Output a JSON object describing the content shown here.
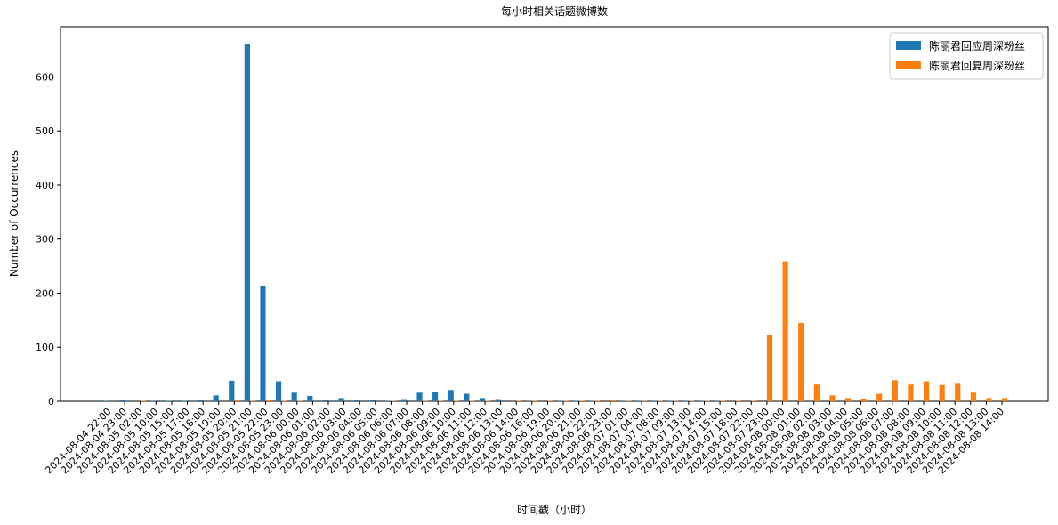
{
  "chart_data": {
    "type": "bar",
    "title": "每小时相关话题微博数",
    "x_label": "时间戳（小时）",
    "y_label": "Number of Occurrences",
    "categories": [
      "2024-08-04 22:00",
      "2024-08-04 23:00",
      "2024-08-05 02:00",
      "2024-08-05 10:00",
      "2024-08-05 15:00",
      "2024-08-05 17:00",
      "2024-08-05 18:00",
      "2024-08-05 19:00",
      "2024-08-05 20:00",
      "2024-08-05 21:00",
      "2024-08-05 22:00",
      "2024-08-05 23:00",
      "2024-08-06 00:00",
      "2024-08-06 01:00",
      "2024-08-06 02:00",
      "2024-08-06 03:00",
      "2024-08-06 04:00",
      "2024-08-06 05:00",
      "2024-08-06 06:00",
      "2024-08-06 07:00",
      "2024-08-06 08:00",
      "2024-08-06 09:00",
      "2024-08-06 10:00",
      "2024-08-06 11:00",
      "2024-08-06 12:00",
      "2024-08-06 13:00",
      "2024-08-06 14:00",
      "2024-08-06 16:00",
      "2024-08-06 19:00",
      "2024-08-06 20:00",
      "2024-08-06 21:00",
      "2024-08-06 22:00",
      "2024-08-06 23:00",
      "2024-08-07 01:00",
      "2024-08-07 04:00",
      "2024-08-07 08:00",
      "2024-08-07 09:00",
      "2024-08-07 13:00",
      "2024-08-07 14:00",
      "2024-08-07 15:00",
      "2024-08-07 18:00",
      "2024-08-07 22:00",
      "2024-08-07 23:00",
      "2024-08-08 00:00",
      "2024-08-08 01:00",
      "2024-08-08 02:00",
      "2024-08-08 03:00",
      "2024-08-08 04:00",
      "2024-08-08 05:00",
      "2024-08-08 06:00",
      "2024-08-08 07:00",
      "2024-08-08 08:00",
      "2024-08-08 09:00",
      "2024-08-08 10:00",
      "2024-08-08 11:00",
      "2024-08-08 12:00",
      "2024-08-08 13:00",
      "2024-08-08 14:00"
    ],
    "series": [
      {
        "name": "陈丽君回应周深粉丝",
        "color": "#1f77b4",
        "values": [
          1,
          3,
          0,
          1,
          1,
          1,
          2,
          11,
          38,
          660,
          214,
          37,
          16,
          10,
          3,
          6,
          2,
          3,
          1,
          4,
          16,
          18,
          21,
          14,
          6,
          4,
          0,
          1,
          0,
          1,
          1,
          1,
          0,
          1,
          1,
          1,
          1,
          1,
          1,
          1,
          0,
          0,
          0,
          0,
          0,
          0,
          0,
          0,
          0,
          0,
          0,
          0,
          0,
          0,
          0,
          0,
          0,
          0
        ]
      },
      {
        "name": "陈丽君回复周深粉丝",
        "color": "#ff7f0e",
        "values": [
          0,
          0,
          1,
          0,
          0,
          0,
          0,
          0,
          2,
          1,
          3,
          1,
          1,
          0,
          0,
          0,
          0,
          0,
          1,
          0,
          1,
          1,
          1,
          1,
          1,
          0,
          1,
          1,
          1,
          1,
          1,
          1,
          3,
          1,
          1,
          1,
          1,
          1,
          1,
          1,
          1,
          1,
          122,
          259,
          145,
          31,
          11,
          6,
          5,
          14,
          39,
          31,
          37,
          30,
          34,
          16,
          6,
          6
        ]
      }
    ],
    "ylim": [
      0,
      693
    ],
    "yticks": [
      0,
      100,
      200,
      300,
      400,
      500,
      600
    ],
    "legend": "upper right"
  }
}
